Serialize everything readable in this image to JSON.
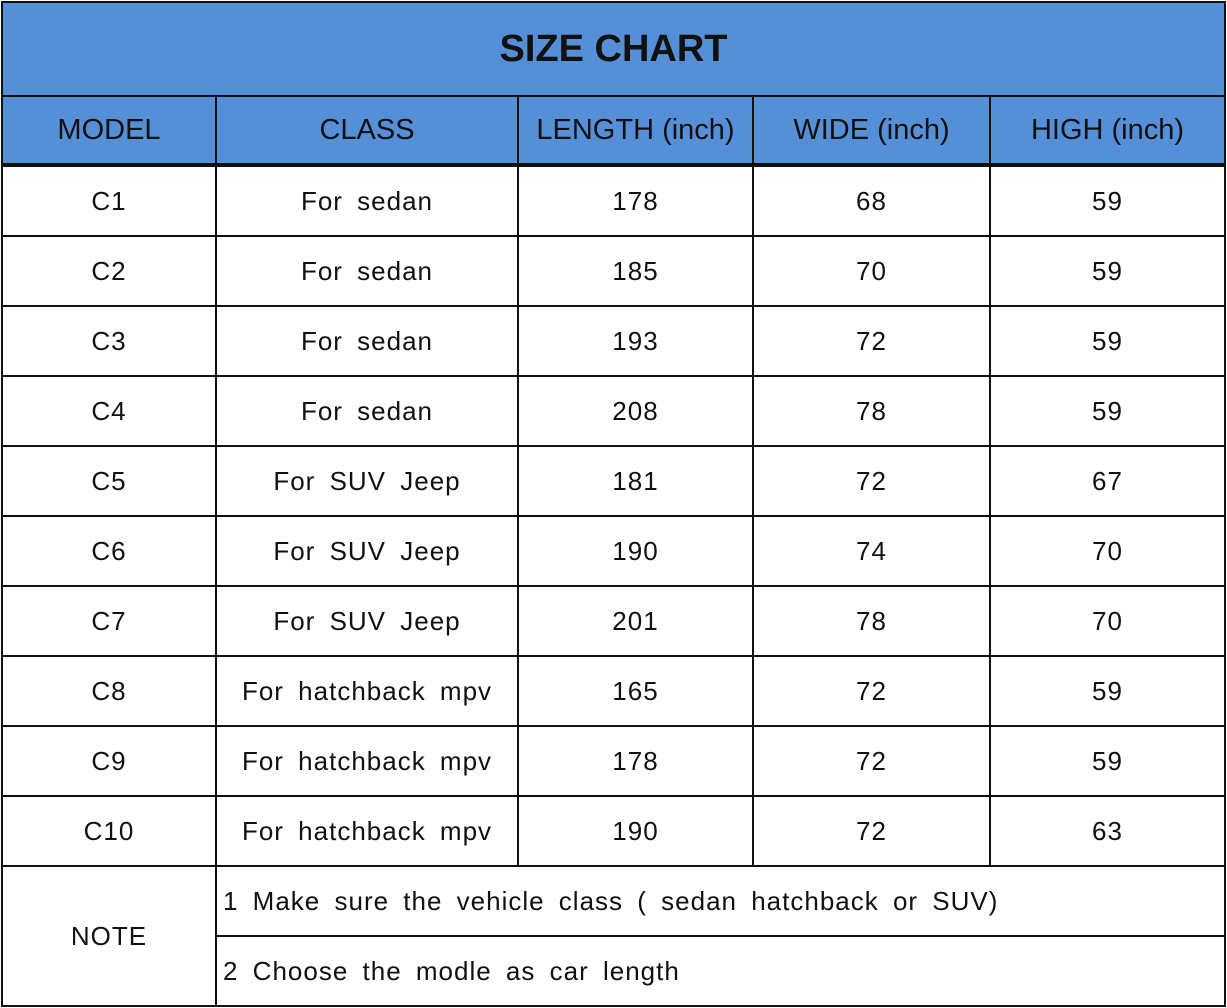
{
  "title": "SIZE CHART",
  "headers": [
    "MODEL",
    "CLASS",
    "LENGTH (inch)",
    "WIDE (inch)",
    "HIGH (inch)"
  ],
  "rows": [
    [
      "C1",
      "For sedan",
      "178",
      "68",
      "59"
    ],
    [
      "C2",
      "For sedan",
      "185",
      "70",
      "59"
    ],
    [
      "C3",
      "For sedan",
      "193",
      "72",
      "59"
    ],
    [
      "C4",
      "For sedan",
      "208",
      "78",
      "59"
    ],
    [
      "C5",
      "For SUV Jeep",
      "181",
      "72",
      "67"
    ],
    [
      "C6",
      "For SUV Jeep",
      "190",
      "74",
      "70"
    ],
    [
      "C7",
      "For SUV Jeep",
      "201",
      "78",
      "70"
    ],
    [
      "C8",
      "For hatchback mpv",
      "165",
      "72",
      "59"
    ],
    [
      "C9",
      "For hatchback mpv",
      "178",
      "72",
      "59"
    ],
    [
      "C10",
      "For hatchback mpv",
      "190",
      "72",
      "63"
    ]
  ],
  "note": {
    "label": "NOTE",
    "lines": [
      "1 Make sure the vehicle class ( sedan hatchback or SUV)",
      "2 Choose the modle as car length"
    ]
  },
  "colors": {
    "header_bg": "#548fd7",
    "border": "#111111"
  }
}
